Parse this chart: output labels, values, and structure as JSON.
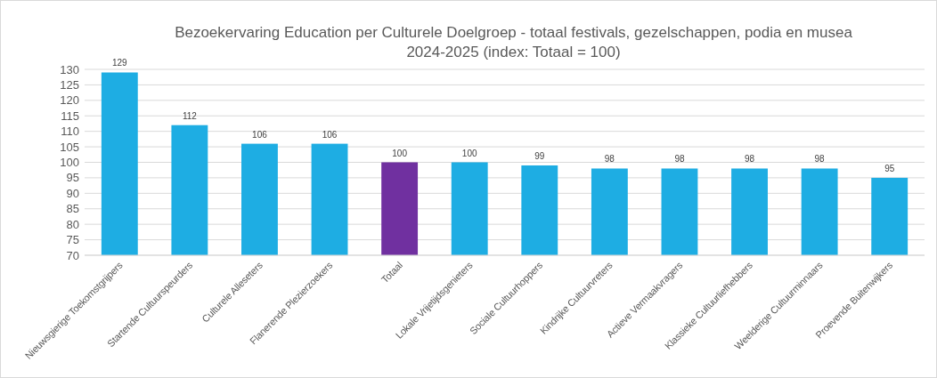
{
  "chart_data": {
    "type": "bar",
    "title": "Bezoekervaring Education per Culturele Doelgroep - totaal festivals, gezelschappen, podia en musea",
    "subtitle": "2024-2025 (index: Totaal = 100)",
    "categories": [
      "Nieuwsgierige Toekomstgrijpers",
      "Startende Cultuurspeurders",
      "Culturele Alleseters",
      "Flanerende Plezierzoekers",
      "Totaal",
      "Lokale Vrijetijdsgenieters",
      "Sociale Cultuurhoppers",
      "Kindrijke Cultuurvreters",
      "Actieve Vermaakvragers",
      "Klassieke Cultuurliefhebbers",
      "Weelderige Cultuurminnaars",
      "Proevende Buitenwijkers"
    ],
    "values": [
      129,
      112,
      106,
      106,
      100,
      100,
      99,
      98,
      98,
      98,
      98,
      95
    ],
    "colors": [
      "#1eade3",
      "#1eade3",
      "#1eade3",
      "#1eade3",
      "#7030a0",
      "#1eade3",
      "#1eade3",
      "#1eade3",
      "#1eade3",
      "#1eade3",
      "#1eade3",
      "#1eade3"
    ],
    "ylim": [
      70,
      130
    ],
    "yticks": [
      70,
      75,
      80,
      85,
      90,
      95,
      100,
      105,
      110,
      115,
      120,
      125,
      130
    ],
    "grid": "y",
    "data_labels": true
  }
}
